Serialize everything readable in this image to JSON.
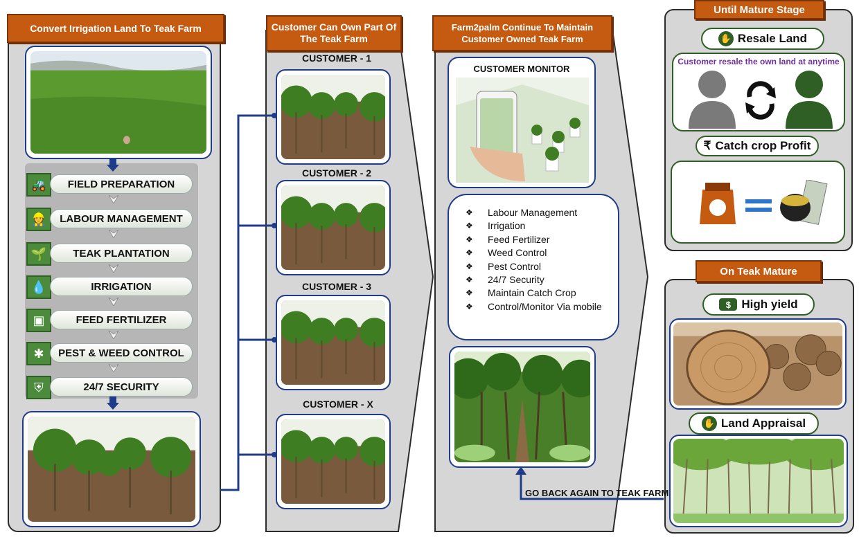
{
  "col1": {
    "banner": "Convert Irrigation Land To Teak Farm",
    "steps": [
      {
        "label": "FIELD PREPARATION",
        "icon": "tractor-icon"
      },
      {
        "label": "LABOUR MANAGEMENT",
        "icon": "worker-icon"
      },
      {
        "label": "TEAK PLANTATION",
        "icon": "plant-rows-icon"
      },
      {
        "label": "IRRIGATION",
        "icon": "watering-can-icon"
      },
      {
        "label": "FEED FERTILIZER",
        "icon": "fertilizer-bag-icon"
      },
      {
        "label": "PEST & WEED CONTROL",
        "icon": "bug-icon"
      },
      {
        "label": "24/7 SECURITY",
        "icon": "security-guard-icon"
      }
    ]
  },
  "col2": {
    "banner": "Customer Can Own Part Of The Teak  Farm",
    "customers": [
      "CUSTOMER - 1",
      "CUSTOMER - 2",
      "CUSTOMER - 3",
      "CUSTOMER - X"
    ]
  },
  "col3": {
    "banner": "Farm2palm Continue To Maintain Customer Owned Teak Farm",
    "monitor_title": "CUSTOMER MONITOR",
    "services": [
      "Labour Management",
      "Irrigation",
      "Feed Fertilizer",
      "Weed Control",
      "Pest Control",
      "24/7 Security",
      " Maintain Catch Crop",
      "Control/Monitor Via mobile"
    ],
    "go_back": "GO BACK AGAIN TO TEAK FARM"
  },
  "col4": {
    "top_banner": "Until Mature Stage",
    "resale_title": "Resale Land",
    "resale_caption": "Customer resale the own land at anytime",
    "catch_title": "Catch crop Profit",
    "catch_prefix": "₹",
    "bottom_banner": "On Teak Mature",
    "yield_title": "High yield",
    "appraisal_title": "Land Appraisal"
  },
  "colors": {
    "banner": "#c55a11",
    "navy": "#1f3c88",
    "leaf_green": "#2f5f24",
    "panel_grey": "#d6d6d6",
    "caption_purple": "#7030a0"
  }
}
